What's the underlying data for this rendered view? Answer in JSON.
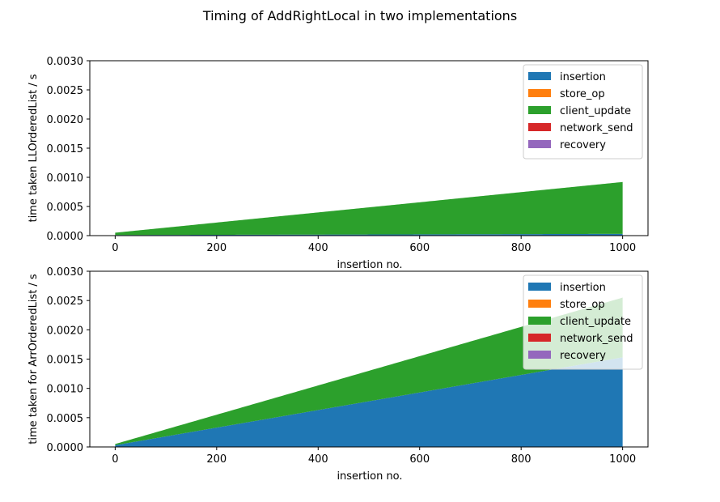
{
  "figure": {
    "title": "Timing of AddRightLocal in two implementations"
  },
  "colors": {
    "insertion": "#1f77b4",
    "store_op": "#ff7f0e",
    "client_update": "#2ca02c",
    "network_send": "#d62728",
    "recovery": "#9467bd"
  },
  "chart_data": [
    {
      "type": "area",
      "stacked": true,
      "title": "",
      "xlabel": "insertion no.",
      "ylabel": "time taken LLOrderedList / s",
      "xlim": [
        -50,
        1050
      ],
      "ylim": [
        0,
        0.003
      ],
      "xticks": [
        0,
        200,
        400,
        600,
        800,
        1000
      ],
      "yticks": [
        "0.0000",
        "0.0005",
        "0.0010",
        "0.0015",
        "0.0020",
        "0.0025",
        "0.0030"
      ],
      "legend_position": "top-right",
      "x": [
        0,
        1000
      ],
      "series": [
        {
          "name": "insertion",
          "values": [
            1e-05,
            3e-05
          ]
        },
        {
          "name": "store_op",
          "values": [
            0,
            0
          ]
        },
        {
          "name": "client_update",
          "values": [
            4e-05,
            0.00089
          ]
        },
        {
          "name": "network_send",
          "values": [
            0,
            0
          ]
        },
        {
          "name": "recovery",
          "values": [
            0,
            0
          ]
        }
      ]
    },
    {
      "type": "area",
      "stacked": true,
      "title": "",
      "xlabel": "insertion no.",
      "ylabel": "time taken for ArrOrderedList / s",
      "xlim": [
        -50,
        1050
      ],
      "ylim": [
        0,
        0.003
      ],
      "xticks": [
        0,
        200,
        400,
        600,
        800,
        1000
      ],
      "yticks": [
        "0.0000",
        "0.0005",
        "0.0010",
        "0.0015",
        "0.0020",
        "0.0025",
        "0.0030"
      ],
      "legend_position": "top-right",
      "x": [
        0,
        1000
      ],
      "series": [
        {
          "name": "insertion",
          "values": [
            3e-05,
            0.00153
          ]
        },
        {
          "name": "store_op",
          "values": [
            0,
            0
          ]
        },
        {
          "name": "client_update",
          "values": [
            2e-05,
            0.00102
          ]
        },
        {
          "name": "network_send",
          "values": [
            0,
            0
          ]
        },
        {
          "name": "recovery",
          "values": [
            0,
            0
          ]
        }
      ]
    }
  ]
}
